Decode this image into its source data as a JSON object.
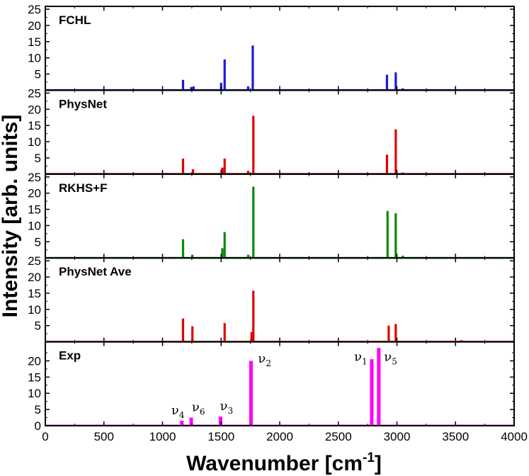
{
  "chart_data": {
    "type": "bar",
    "xlabel": "Wavenumber [cm",
    "xlabel_sup": "-1",
    "xlabel_close": "]",
    "ylabel": "Intensity [arb. units]",
    "xlim": [
      0,
      4000
    ],
    "ylim": [
      0,
      25
    ],
    "x_ticks": [
      0,
      500,
      1000,
      1500,
      2000,
      2500,
      3000,
      3500,
      4000
    ],
    "y_ticks": [
      5,
      10,
      15,
      20,
      25
    ],
    "y_ticks_bottom": [
      0,
      5,
      10,
      15,
      20
    ],
    "grid": false,
    "panels": [
      {
        "name": "FCHL",
        "color": "#1a1adc",
        "peaks": [
          {
            "x": 1175,
            "y": 3.2
          },
          {
            "x": 1245,
            "y": 1.0
          },
          {
            "x": 1265,
            "y": 1.2
          },
          {
            "x": 1500,
            "y": 2.3
          },
          {
            "x": 1530,
            "y": 9.5
          },
          {
            "x": 1730,
            "y": 1.2
          },
          {
            "x": 1770,
            "y": 13.8
          },
          {
            "x": 2915,
            "y": 4.8
          },
          {
            "x": 2990,
            "y": 5.5
          },
          {
            "x": 3050,
            "y": 0.6
          }
        ]
      },
      {
        "name": "PhysNet",
        "color": "#e00000",
        "peaks": [
          {
            "x": 1175,
            "y": 4.8
          },
          {
            "x": 1260,
            "y": 1.5
          },
          {
            "x": 1510,
            "y": 2.0
          },
          {
            "x": 1530,
            "y": 4.8
          },
          {
            "x": 1730,
            "y": 1.0
          },
          {
            "x": 1775,
            "y": 18.0
          },
          {
            "x": 2915,
            "y": 6.0
          },
          {
            "x": 2990,
            "y": 13.8
          },
          {
            "x": 3050,
            "y": 0.5
          }
        ]
      },
      {
        "name": "RKHS+F",
        "color": "#0a8a0a",
        "peaks": [
          {
            "x": 1175,
            "y": 5.8
          },
          {
            "x": 1255,
            "y": 1.0
          },
          {
            "x": 1510,
            "y": 3.0
          },
          {
            "x": 1530,
            "y": 8.0
          },
          {
            "x": 1730,
            "y": 1.0
          },
          {
            "x": 1775,
            "y": 22.0
          },
          {
            "x": 2920,
            "y": 14.5
          },
          {
            "x": 2990,
            "y": 13.8
          },
          {
            "x": 3050,
            "y": 0.7
          }
        ]
      },
      {
        "name": "PhysNet Ave",
        "color": "#e00000",
        "peaks": [
          {
            "x": 1175,
            "y": 7.2
          },
          {
            "x": 1255,
            "y": 4.8
          },
          {
            "x": 1530,
            "y": 5.8
          },
          {
            "x": 1760,
            "y": 3.0
          },
          {
            "x": 1775,
            "y": 15.8
          },
          {
            "x": 2930,
            "y": 5.0
          },
          {
            "x": 2990,
            "y": 5.5
          },
          {
            "x": 3550,
            "y": 0.5
          }
        ]
      },
      {
        "name": "Exp",
        "color": "#ff00ff",
        "peaks": [
          {
            "x": 1165,
            "y": 1.5
          },
          {
            "x": 1245,
            "y": 2.5
          },
          {
            "x": 1495,
            "y": 2.8
          },
          {
            "x": 1755,
            "y": 20.0
          },
          {
            "x": 2785,
            "y": 20.5
          },
          {
            "x": 2845,
            "y": 24.0
          }
        ],
        "annotations": [
          {
            "label": "ν",
            "sub": "4",
            "x": 1075,
            "y": 3.5
          },
          {
            "label": "ν",
            "sub": "6",
            "x": 1250,
            "y": 4.5
          },
          {
            "label": "ν",
            "sub": "3",
            "x": 1490,
            "y": 4.8
          },
          {
            "label": "ν",
            "sub": "2",
            "x": 1815,
            "y": 19.5
          },
          {
            "label": "ν",
            "sub": "1",
            "x": 2635,
            "y": 20.0
          },
          {
            "label": "ν",
            "sub": "5",
            "x": 2890,
            "y": 20.0
          }
        ]
      }
    ]
  }
}
